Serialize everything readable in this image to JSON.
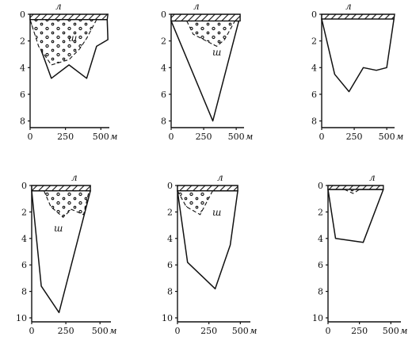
{
  "figure": {
    "panels": [
      {
        "id": "panel-1",
        "x_axis": {
          "ticks": [
            0,
            250,
            500
          ],
          "unit": "м"
        },
        "y_axis": {
          "ticks": [
            0,
            2,
            4,
            6,
            8
          ],
          "max": 8.5
        },
        "x_range": [
          0,
          560
        ],
        "top_label": "л",
        "inner_label": "ш",
        "ice_layer": [
          [
            0,
            0
          ],
          [
            550,
            0
          ],
          [
            545,
            0.4
          ],
          [
            0,
            0.4
          ]
        ],
        "outline": [
          [
            0,
            0.4
          ],
          [
            150,
            4.8
          ],
          [
            275,
            3.8
          ],
          [
            400,
            4.8
          ],
          [
            470,
            2.4
          ],
          [
            550,
            1.9
          ],
          [
            545,
            0.4
          ]
        ],
        "sludge_zone": [
          [
            0,
            0.4
          ],
          [
            60,
            2.4
          ],
          [
            150,
            3.8
          ],
          [
            275,
            3.4
          ],
          [
            350,
            2.6
          ],
          [
            400,
            1.8
          ],
          [
            470,
            0.4
          ]
        ]
      },
      {
        "id": "panel-2",
        "x_axis": {
          "ticks": [
            0,
            250,
            500
          ],
          "unit": "м"
        },
        "y_axis": {
          "ticks": [
            0,
            2,
            4,
            6,
            8
          ],
          "max": 8.5
        },
        "x_range": [
          0,
          560
        ],
        "top_label": "л",
        "inner_label": "ш",
        "ice_layer": [
          [
            0,
            0
          ],
          [
            530,
            0
          ],
          [
            530,
            0.5
          ],
          [
            0,
            0.5
          ]
        ],
        "outline": [
          [
            0,
            0.5
          ],
          [
            320,
            8.0
          ],
          [
            520,
            0.5
          ]
        ],
        "sludge_zone": [
          [
            120,
            0.5
          ],
          [
            170,
            1.5
          ],
          [
            350,
            2.4
          ],
          [
            410,
            1.9
          ],
          [
            490,
            0.5
          ]
        ]
      },
      {
        "id": "panel-3",
        "x_axis": {
          "ticks": [
            0,
            250,
            500
          ],
          "unit": "м"
        },
        "y_axis": {
          "ticks": [
            0,
            2,
            4,
            6,
            8
          ],
          "max": 8.5
        },
        "x_range": [
          0,
          560
        ],
        "top_label": "л",
        "inner_label": "",
        "ice_layer": [
          [
            0,
            0
          ],
          [
            560,
            0
          ],
          [
            555,
            0.35
          ],
          [
            0,
            0.35
          ]
        ],
        "outline": [
          [
            0,
            0.35
          ],
          [
            100,
            4.5
          ],
          [
            210,
            5.8
          ],
          [
            320,
            4.0
          ],
          [
            420,
            4.2
          ],
          [
            500,
            4.0
          ],
          [
            555,
            0.35
          ]
        ],
        "sludge_zone": []
      },
      {
        "id": "panel-4",
        "x_axis": {
          "ticks": [
            0,
            250,
            500
          ],
          "unit": "м"
        },
        "y_axis": {
          "ticks": [
            0,
            2,
            4,
            6,
            8,
            10
          ],
          "max": 10.3
        },
        "x_range": [
          0,
          580
        ],
        "top_label": "л",
        "inner_label": "ш",
        "ice_layer": [
          [
            0,
            0
          ],
          [
            430,
            0
          ],
          [
            430,
            0.4
          ],
          [
            0,
            0.4
          ]
        ],
        "outline": [
          [
            0,
            0.4
          ],
          [
            70,
            7.6
          ],
          [
            200,
            9.6
          ],
          [
            430,
            0.4
          ]
        ],
        "sludge_zone": [
          [
            90,
            0.4
          ],
          [
            140,
            1.6
          ],
          [
            230,
            2.4
          ],
          [
            290,
            1.8
          ],
          [
            380,
            2.2
          ],
          [
            420,
            0.4
          ]
        ]
      },
      {
        "id": "panel-5",
        "x_axis": {
          "ticks": [
            0,
            250,
            500
          ],
          "unit": "м"
        },
        "y_axis": {
          "ticks": [
            0,
            2,
            4,
            6,
            8,
            10
          ],
          "max": 10.3
        },
        "x_range": [
          0,
          580
        ],
        "top_label": "л",
        "inner_label": "ш",
        "ice_layer": [
          [
            0,
            0
          ],
          [
            480,
            0
          ],
          [
            480,
            0.4
          ],
          [
            0,
            0.4
          ]
        ],
        "outline": [
          [
            0,
            0.4
          ],
          [
            80,
            5.8
          ],
          [
            300,
            7.8
          ],
          [
            420,
            4.5
          ],
          [
            480,
            0.4
          ]
        ],
        "sludge_zone": [
          [
            0,
            0.4
          ],
          [
            70,
            1.6
          ],
          [
            180,
            2.2
          ],
          [
            280,
            0.4
          ]
        ]
      },
      {
        "id": "panel-6",
        "x_axis": {
          "ticks": [
            0,
            250,
            500
          ],
          "unit": "м"
        },
        "y_axis": {
          "ticks": [
            0,
            2,
            4,
            6,
            8,
            10
          ],
          "max": 10.3
        },
        "x_range": [
          0,
          580
        ],
        "top_label": "л",
        "inner_label": "",
        "ice_layer": [
          [
            0,
            0
          ],
          [
            440,
            0
          ],
          [
            440,
            0.3
          ],
          [
            0,
            0.3
          ]
        ],
        "outline": [
          [
            0,
            0.3
          ],
          [
            60,
            4.0
          ],
          [
            280,
            4.3
          ],
          [
            440,
            0.3
          ]
        ],
        "sludge_zone": [
          [
            130,
            0.3
          ],
          [
            200,
            0.6
          ],
          [
            250,
            0.3
          ]
        ]
      }
    ]
  }
}
